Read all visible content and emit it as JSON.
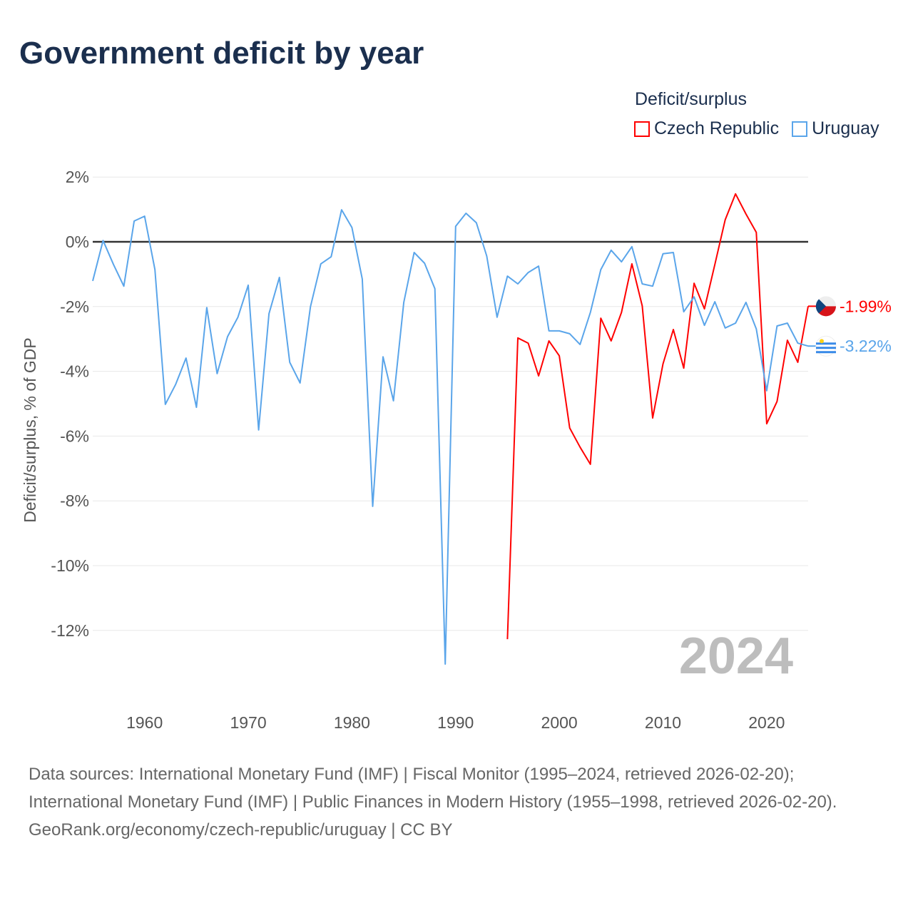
{
  "title": "Government deficit by year",
  "legend": {
    "title": "Deficit/surplus",
    "items": [
      {
        "label": "Czech Republic",
        "color": "#ff0000"
      },
      {
        "label": "Uruguay",
        "color": "#5aa5ea"
      }
    ]
  },
  "footer": {
    "sources": "Data sources: International Monetary Fund (IMF) | Fiscal Monitor (1995–2024, retrieved 2026-02-20); International Monetary Fund (IMF) | Public Finances in Modern History (1955–1998, retrieved 2026-02-20).",
    "credit": "GeoRank.org/economy/czech-republic/uruguay | CC BY"
  },
  "chart_data": {
    "type": "line",
    "title": "Government deficit by year",
    "xlabel": "",
    "ylabel": "Deficit/surplus, % of GDP",
    "xlim": [
      1955,
      2024
    ],
    "ylim": [
      -14,
      2.5
    ],
    "x_ticks": [
      1960,
      1970,
      1980,
      1990,
      2000,
      2010,
      2020
    ],
    "y_ticks": [
      2,
      0,
      -2,
      -4,
      -6,
      -8,
      -10,
      -12
    ],
    "y_tick_labels": [
      "2%",
      "0%",
      "-2%",
      "-4%",
      "-6%",
      "-8%",
      "-10%",
      "-12%"
    ],
    "year_watermark": "2024",
    "series": [
      {
        "name": "Czech Republic",
        "color": "#ff0000",
        "start_year": 1995,
        "end_label": "-1.99%",
        "values": [
          -12.27,
          -2.97,
          -3.13,
          -4.14,
          -3.06,
          -3.52,
          -5.75,
          -6.34,
          -6.87,
          -2.36,
          -3.06,
          -2.18,
          -0.68,
          -1.98,
          -5.44,
          -3.77,
          -2.71,
          -3.9,
          -1.28,
          -2.07,
          -0.7,
          0.68,
          1.48,
          0.86,
          0.29,
          -5.62,
          -4.93,
          -3.04,
          -3.72,
          -1.99
        ]
      },
      {
        "name": "Uruguay",
        "color": "#5aa5ea",
        "start_year": 1955,
        "end_label": "-3.22%",
        "values": [
          -1.21,
          0.04,
          -0.7,
          -1.37,
          0.64,
          0.79,
          -0.86,
          -5.02,
          -4.4,
          -3.59,
          -5.11,
          -2.03,
          -4.07,
          -2.93,
          -2.33,
          -1.34,
          -5.81,
          -2.22,
          -1.1,
          -3.72,
          -4.36,
          -2.0,
          -0.68,
          -0.46,
          0.99,
          0.44,
          -1.15,
          -8.17,
          -3.55,
          -4.91,
          -1.87,
          -0.33,
          -0.66,
          -1.45,
          -13.04,
          0.48,
          0.88,
          0.59,
          -0.44,
          -2.33,
          -1.06,
          -1.3,
          -0.95,
          -0.75,
          -2.75,
          -2.75,
          -2.84,
          -3.17,
          -2.18,
          -0.86,
          -0.26,
          -0.62,
          -0.15,
          -1.3,
          -1.37,
          -0.37,
          -0.33,
          -2.16,
          -1.7,
          -2.58,
          -1.85,
          -2.66,
          -2.51,
          -1.87,
          -2.69,
          -4.6,
          -2.6,
          -2.51,
          -3.13,
          -3.22
        ]
      }
    ]
  }
}
